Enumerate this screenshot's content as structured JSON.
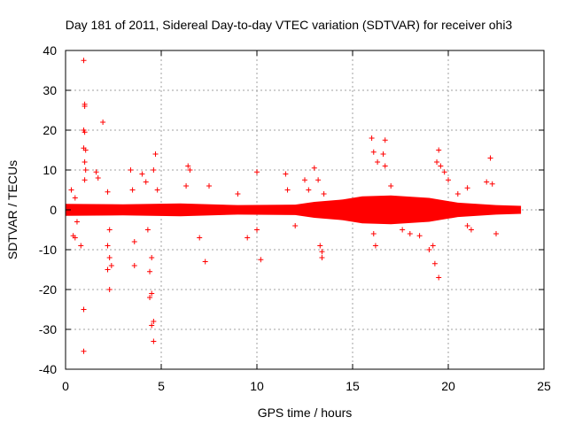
{
  "chart_data": {
    "type": "scatter",
    "title": "Day 181 of 2011, Sidereal Day-to-day VTEC variation (SDTVAR) for receiver ohi3",
    "xlabel": "GPS time / hours",
    "ylabel": "SDTVAR / TECUs",
    "xlim": [
      0,
      25
    ],
    "ylim": [
      -40,
      40
    ],
    "xticks": [
      0,
      5,
      10,
      15,
      20,
      25
    ],
    "yticks": [
      -40,
      -30,
      -20,
      -10,
      0,
      10,
      20,
      30,
      40
    ],
    "grid": true,
    "marker": "+",
    "series": [
      {
        "name": "SDTVAR",
        "color": "#ff0000",
        "band": [
          [
            0.0,
            1.5
          ],
          [
            3.0,
            1.4
          ],
          [
            6.0,
            1.6
          ],
          [
            9.0,
            1.2
          ],
          [
            12.0,
            1.3
          ],
          [
            13.0,
            2.0
          ],
          [
            14.5,
            2.6
          ],
          [
            15.5,
            3.4
          ],
          [
            17.0,
            3.6
          ],
          [
            19.0,
            3.0
          ],
          [
            20.5,
            1.8
          ],
          [
            22.5,
            1.2
          ],
          [
            23.8,
            1.0
          ]
        ],
        "outliers": [
          [
            0.95,
            37.5
          ],
          [
            1.0,
            26.5
          ],
          [
            1.0,
            26.0
          ],
          [
            0.95,
            20.0
          ],
          [
            1.0,
            19.5
          ],
          [
            0.95,
            15.5
          ],
          [
            1.05,
            15.0
          ],
          [
            1.0,
            12.0
          ],
          [
            1.05,
            10.0
          ],
          [
            1.0,
            7.5
          ],
          [
            0.5,
            3.0
          ],
          [
            0.3,
            5.0
          ],
          [
            0.6,
            -3.0
          ],
          [
            0.4,
            -6.5
          ],
          [
            0.5,
            -7.0
          ],
          [
            0.8,
            -9.0
          ],
          [
            0.95,
            -25.0
          ],
          [
            0.95,
            -35.5
          ],
          [
            1.95,
            22.0
          ],
          [
            1.6,
            9.5
          ],
          [
            1.7,
            8.0
          ],
          [
            2.2,
            4.5
          ],
          [
            2.3,
            -5.0
          ],
          [
            2.2,
            -9.0
          ],
          [
            2.3,
            -12.0
          ],
          [
            2.2,
            -15.0
          ],
          [
            2.3,
            -20.0
          ],
          [
            2.4,
            -14.0
          ],
          [
            3.4,
            10.0
          ],
          [
            3.5,
            5.0
          ],
          [
            3.6,
            -8.0
          ],
          [
            3.6,
            -14.0
          ],
          [
            4.0,
            9.0
          ],
          [
            4.2,
            7.0
          ],
          [
            4.3,
            -5.0
          ],
          [
            4.5,
            -12.0
          ],
          [
            4.4,
            -15.5
          ],
          [
            4.4,
            -22.0
          ],
          [
            4.5,
            -21.0
          ],
          [
            4.5,
            -29.0
          ],
          [
            4.6,
            -28.0
          ],
          [
            4.6,
            -33.0
          ],
          [
            4.7,
            14.0
          ],
          [
            4.6,
            10.0
          ],
          [
            4.8,
            5.0
          ],
          [
            6.4,
            11.0
          ],
          [
            6.5,
            10.0
          ],
          [
            6.3,
            6.0
          ],
          [
            7.0,
            -7.0
          ],
          [
            7.5,
            6.0
          ],
          [
            7.3,
            -13.0
          ],
          [
            9.0,
            4.0
          ],
          [
            9.5,
            -7.0
          ],
          [
            10.0,
            9.5
          ],
          [
            10.2,
            -12.5
          ],
          [
            10.0,
            -5.0
          ],
          [
            11.5,
            9.0
          ],
          [
            11.6,
            5.0
          ],
          [
            12.0,
            -4.0
          ],
          [
            12.5,
            7.5
          ],
          [
            12.7,
            5.0
          ],
          [
            13.0,
            10.5
          ],
          [
            13.2,
            7.5
          ],
          [
            13.3,
            -9.0
          ],
          [
            13.4,
            -12.0
          ],
          [
            13.4,
            -10.5
          ],
          [
            13.5,
            4.0
          ],
          [
            16.0,
            18.0
          ],
          [
            16.1,
            14.5
          ],
          [
            16.3,
            12.0
          ],
          [
            16.1,
            -6.0
          ],
          [
            16.2,
            -9.0
          ],
          [
            16.6,
            14.0
          ],
          [
            16.7,
            17.5
          ],
          [
            16.7,
            11.0
          ],
          [
            17.0,
            6.0
          ],
          [
            17.6,
            -5.0
          ],
          [
            18.0,
            -6.0
          ],
          [
            18.5,
            -6.5
          ],
          [
            19.0,
            -10.0
          ],
          [
            19.2,
            -9.0
          ],
          [
            19.5,
            15.0
          ],
          [
            19.4,
            12.0
          ],
          [
            19.6,
            11.0
          ],
          [
            19.8,
            9.5
          ],
          [
            19.3,
            -13.5
          ],
          [
            19.5,
            -17.0
          ],
          [
            20.0,
            7.5
          ],
          [
            20.5,
            4.0
          ],
          [
            21.0,
            5.5
          ],
          [
            21.0,
            -4.0
          ],
          [
            21.2,
            -5.0
          ],
          [
            22.0,
            7.0
          ],
          [
            22.2,
            13.0
          ],
          [
            22.3,
            6.5
          ],
          [
            22.5,
            -6.0
          ]
        ]
      }
    ]
  }
}
